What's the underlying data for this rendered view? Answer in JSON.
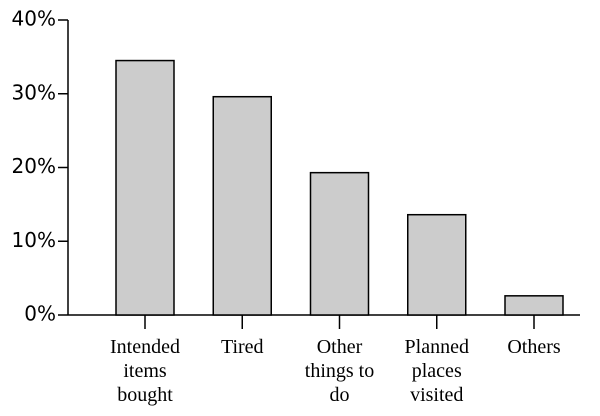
{
  "chart_data": {
    "type": "bar",
    "categories": [
      "Intended items bought",
      "Tired",
      "Other things to do",
      "Planned places visited",
      "Others"
    ],
    "values": [
      34.5,
      29.6,
      19.3,
      13.6,
      2.6
    ],
    "color": "#cccccc",
    "ylim": [
      0,
      40
    ],
    "yticks": [
      {
        "value": 0,
        "label": "0%"
      },
      {
        "value": 10,
        "label": "10%"
      },
      {
        "value": 20,
        "label": "20%"
      },
      {
        "value": 30,
        "label": "30%"
      },
      {
        "value": 40,
        "label": "40%"
      }
    ],
    "grid": false
  }
}
